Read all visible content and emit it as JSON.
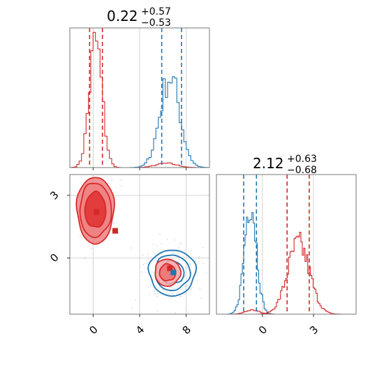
{
  "chart_data": {
    "type": "corner",
    "parameters": [
      {
        "title_value": "0.22",
        "title_plus": "+0.57",
        "title_minus": "−0.53"
      },
      {
        "title_value": "2.12",
        "title_plus": "+0.63",
        "title_minus": "−0.68"
      }
    ],
    "colors": {
      "red": "#d62728",
      "blue": "#1f77b4",
      "red_fill_outer": "#f08080",
      "red_fill_inner": "#e03030"
    },
    "panels": {
      "top_left": {
        "type": "histogram",
        "xlim": [
          -2,
          10
        ],
        "grid_x": [
          0,
          4,
          8
        ],
        "series": [
          {
            "name_color": "red",
            "center": 0.22,
            "sigma": 0.55,
            "peak": 0.9,
            "bins": 0.2
          },
          {
            "name_color": "red_tail",
            "center": 6.3,
            "sigma": 0.9,
            "peak": 0.03,
            "bins": 0.2
          },
          {
            "name_color": "blue",
            "center": 6.6,
            "sigma": 0.85,
            "peak": 0.65,
            "bins": 0.2
          }
        ],
        "vlines": [
          {
            "color": "red",
            "x": -0.3
          },
          {
            "color": "red",
            "x": 0.8
          },
          {
            "color": "blue",
            "x": 5.9
          },
          {
            "color": "blue",
            "x": 7.6
          }
        ]
      },
      "bottom_left": {
        "type": "contour2d",
        "xlim": [
          -2,
          10
        ],
        "ylim": [
          -2.7,
          4.0
        ],
        "xticks": [
          0,
          4,
          8
        ],
        "xtick_labels": [
          "0",
          "4",
          "8"
        ],
        "yticks": [
          0,
          3
        ],
        "ytick_labels": [
          "0",
          "3"
        ],
        "red_clusters": [
          {
            "cx": 0.2,
            "cy": 2.3,
            "levels": [
              [
                1.6,
                1.6
              ],
              [
                1.35,
                1.3
              ],
              [
                0.9,
                0.85
              ]
            ]
          },
          {
            "cx": 6.4,
            "cy": -0.7,
            "levels": [
              [
                1.1,
                0.65
              ],
              [
                0.7,
                0.4
              ]
            ]
          }
        ],
        "blue_cluster": {
          "cx": 6.8,
          "cy": -0.7,
          "levels": [
            [
              2.0,
              1.1
            ],
            [
              1.5,
              0.85
            ],
            [
              1.0,
              0.55
            ]
          ]
        },
        "markers": [
          {
            "color": "red",
            "x": 0.3,
            "y": 2.2
          },
          {
            "color": "red",
            "x": 1.9,
            "y": 1.3
          },
          {
            "color": "red",
            "x": 6.6,
            "y": -0.5
          },
          {
            "color": "blue",
            "x": 6.9,
            "y": -0.7
          }
        ]
      },
      "bottom_right": {
        "type": "histogram",
        "xlim": [
          -2.7,
          5.5
        ],
        "xticks": [
          0,
          3
        ],
        "xtick_labels": [
          "0",
          "3"
        ],
        "series": [
          {
            "name_color": "blue",
            "center": -0.7,
            "sigma": 0.35,
            "peak": 0.82,
            "bins": 0.08
          },
          {
            "name_color": "red",
            "center": 2.12,
            "sigma": 0.65,
            "peak": 0.5,
            "bins": 0.08
          },
          {
            "name_color": "red_tail",
            "center": -0.6,
            "sigma": 0.4,
            "peak": 0.03,
            "bins": 0.08
          }
        ],
        "vlines": [
          {
            "color": "blue",
            "x": -1.1
          },
          {
            "color": "blue",
            "x": -0.35
          },
          {
            "color": "red",
            "x": 1.45
          },
          {
            "color": "red",
            "x": 2.75
          }
        ]
      }
    }
  }
}
